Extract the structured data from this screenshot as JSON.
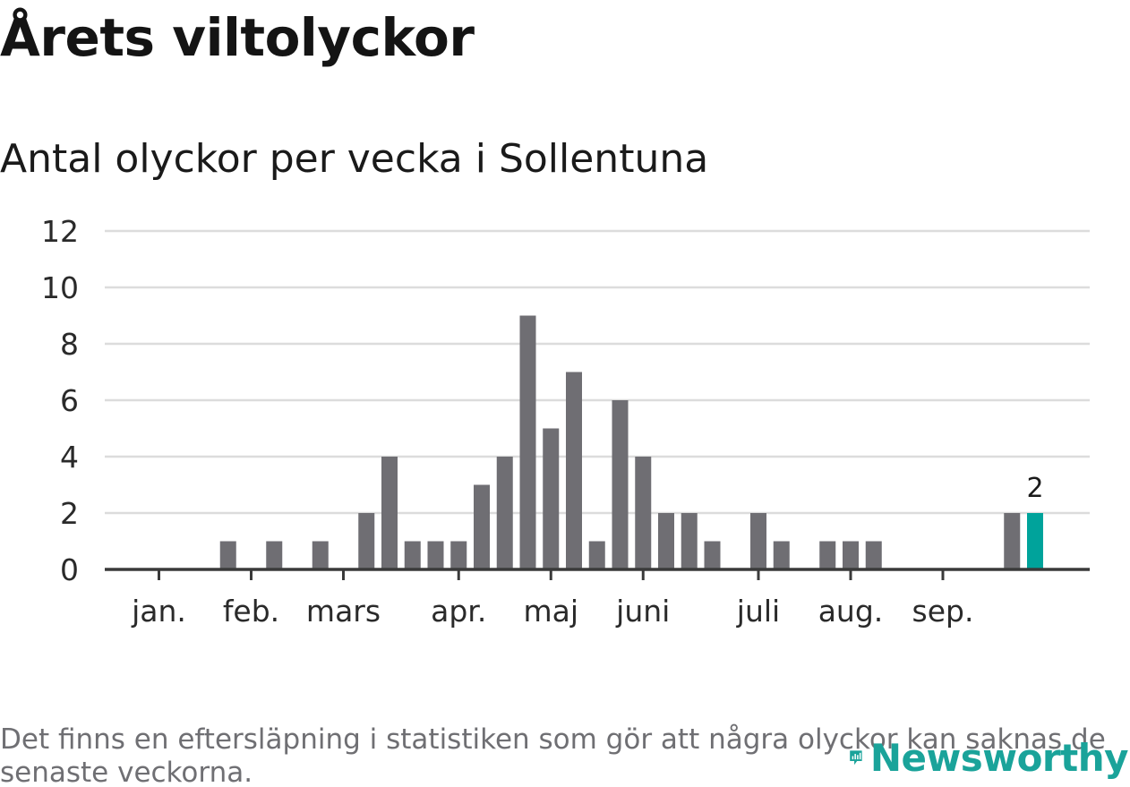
{
  "title": "Årets viltolyckor",
  "subtitle": "Antal olyckor per vecka i Sollentuna",
  "footnote": "Det finns en eftersläpning i statistiken som gör att några olyckor kan saknas de senaste veckorna.",
  "brand": {
    "name": "Newsworthy",
    "color": "#1aa39a"
  },
  "chart_data": {
    "type": "bar",
    "title": "Antal olyckor per vecka i Sollentuna",
    "xlabel": "",
    "ylabel": "",
    "ylim": [
      0,
      12
    ],
    "yticks": [
      0,
      2,
      4,
      6,
      8,
      10,
      12
    ],
    "grid": true,
    "month_labels": [
      "jan.",
      "feb.",
      "mars",
      "apr.",
      "maj",
      "juni",
      "juli",
      "aug.",
      "sep."
    ],
    "month_start_week": [
      1,
      5,
      9,
      14,
      18,
      22,
      27,
      31,
      35
    ],
    "weeks": [
      1,
      2,
      3,
      4,
      5,
      6,
      7,
      8,
      9,
      10,
      11,
      12,
      13,
      14,
      15,
      16,
      17,
      18,
      19,
      20,
      21,
      22,
      23,
      24,
      25,
      26,
      27,
      28,
      29,
      30,
      31,
      32,
      33,
      34,
      35,
      36,
      37,
      38,
      39
    ],
    "values": [
      0,
      0,
      0,
      1,
      0,
      1,
      0,
      1,
      0,
      2,
      4,
      1,
      1,
      1,
      3,
      4,
      9,
      5,
      7,
      1,
      6,
      4,
      2,
      2,
      1,
      0,
      2,
      1,
      0,
      1,
      1,
      1,
      0,
      0,
      0,
      0,
      0,
      2,
      2
    ],
    "highlight_index": 38,
    "highlight_label": "2",
    "colors": {
      "bar": "#6f6e73",
      "highlight": "#00a39b",
      "grid": "#dcdcdc",
      "axis": "#3a3a3a"
    }
  }
}
